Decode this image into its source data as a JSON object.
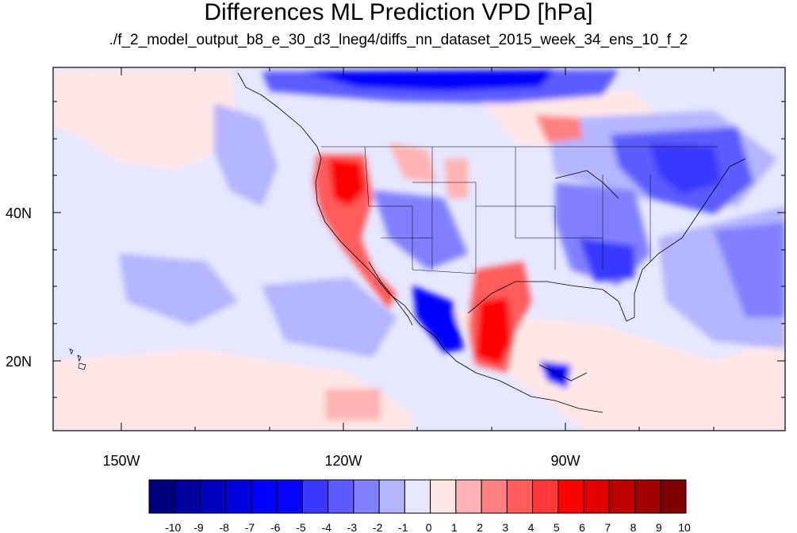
{
  "title": "Differences ML Prediction VPD [hPa]",
  "subtitle": "./f_2_model_output_b8_e_30_d3_lneg4/diffs_nn_dataset_2015_week_34_ens_10_f_2",
  "map": {
    "longitude_labels": [
      "150W",
      "120W",
      "90W"
    ],
    "latitude_labels": [
      "40N",
      "20N"
    ]
  },
  "colorbar": {
    "labels": [
      "-10",
      "-9",
      "-8",
      "-7",
      "-6",
      "-5",
      "-4",
      "-3",
      "-2",
      "-1",
      "0",
      "1",
      "2",
      "3",
      "4",
      "5",
      "6",
      "7",
      "8",
      "9",
      "10"
    ],
    "colors": [
      "#00007f",
      "#00009f",
      "#0000bf",
      "#0000df",
      "#0000ff",
      "#0505ff",
      "#3838ff",
      "#5c5cff",
      "#8080ff",
      "#b4b4ff",
      "#e6e6ff",
      "#ffe6e6",
      "#ffb4b4",
      "#ff8080",
      "#ff5c5c",
      "#ff3838",
      "#ff0000",
      "#e00000",
      "#c00000",
      "#a00000",
      "#800000"
    ]
  }
}
